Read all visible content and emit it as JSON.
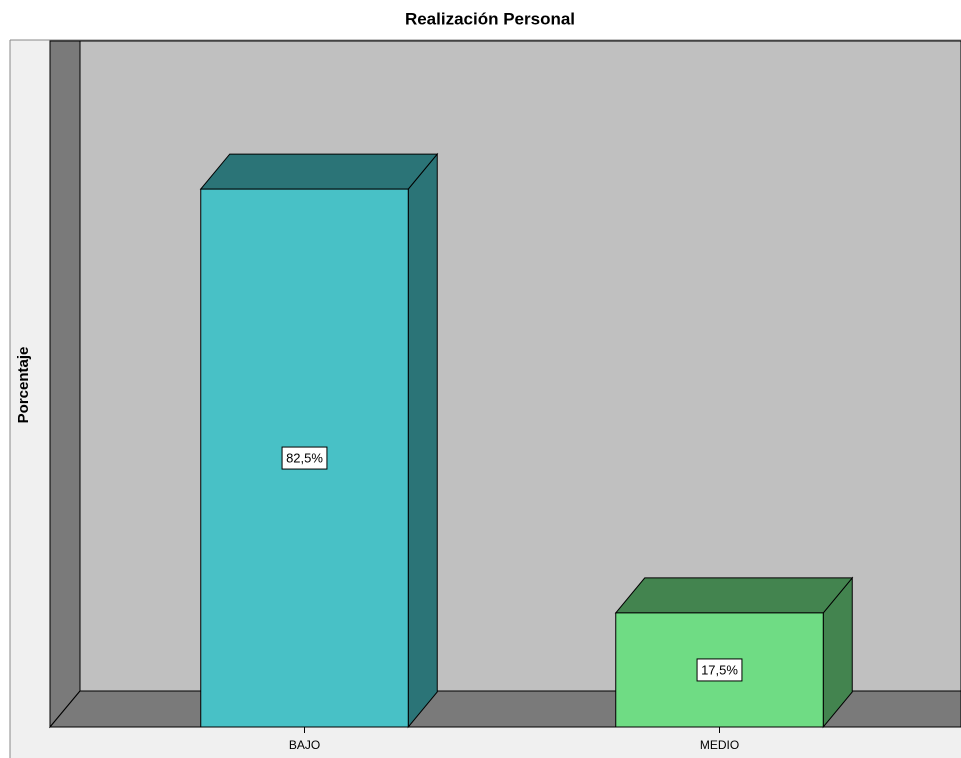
{
  "chart_data": {
    "type": "bar3d",
    "title": "Realización Personal",
    "ylabel": "Porcentaje",
    "categories": [
      "BAJO",
      "MEDIO"
    ],
    "values": [
      82.5,
      17.5
    ],
    "value_labels": [
      "82,5%",
      "17,5%"
    ],
    "colors": [
      "#48c1c6",
      "#6fdc84"
    ],
    "ylim": [
      0,
      100
    ]
  }
}
